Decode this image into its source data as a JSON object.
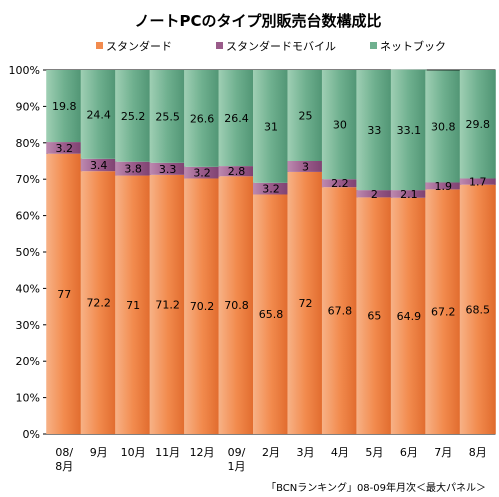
{
  "chart_data": {
    "type": "bar",
    "stacked": true,
    "title": "ノートPCのタイプ別販売台数構成比",
    "categories": [
      "08/\n8月",
      "9月",
      "10月",
      "11月",
      "12月",
      "09/\n1月",
      "2月",
      "3月",
      "4月",
      "5月",
      "6月",
      "7月",
      "8月"
    ],
    "series": [
      {
        "name": "スタンダード",
        "color": "#f28b4e",
        "values": [
          77,
          72.2,
          71,
          71.2,
          70.2,
          70.8,
          65.8,
          72,
          67.8,
          65,
          64.9,
          67.2,
          68.5
        ]
      },
      {
        "name": "スタンダードモバイル",
        "color": "#9a5b8a",
        "values": [
          3.2,
          3.4,
          3.8,
          3.3,
          3.2,
          2.8,
          3.2,
          3,
          2.2,
          2,
          2.1,
          1.9,
          1.7
        ]
      },
      {
        "name": "ネットブック",
        "color": "#6fb08f",
        "values": [
          19.8,
          24.4,
          25.2,
          25.5,
          26.6,
          26.4,
          31,
          25,
          30,
          33,
          33.1,
          30.8,
          29.8
        ]
      }
    ],
    "ylim": [
      0,
      100
    ],
    "yticks": [
      "0%",
      "10%",
      "20%",
      "30%",
      "40%",
      "50%",
      "60%",
      "70%",
      "80%",
      "90%",
      "100%"
    ],
    "grid": false,
    "legend_position": "top",
    "source_note": "「BCNランキング」08-09年月次＜最大パネル＞"
  }
}
